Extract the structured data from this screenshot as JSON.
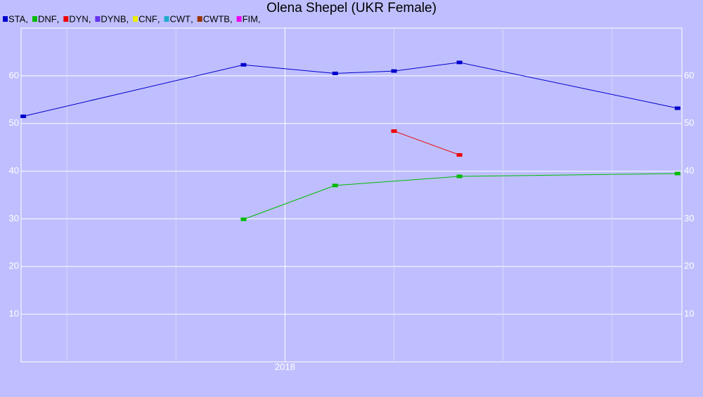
{
  "chart_data": {
    "type": "line",
    "title": "Olena Shepel (UKR Female)",
    "legend_separator": ",",
    "xlim": [
      2016.79,
      2019.82
    ],
    "xticks": [
      {
        "value": 2017,
        "label": null
      },
      {
        "value": 2017.5,
        "label": null
      },
      2018,
      {
        "value": 2018.5,
        "label": null
      },
      {
        "value": 2019,
        "label": null
      },
      {
        "value": 2019.5,
        "label": null
      }
    ],
    "ylim": [
      0,
      70
    ],
    "yticks": [
      10,
      20,
      30,
      40,
      50,
      60
    ],
    "grid": true,
    "series": [
      {
        "name": "STA",
        "color": "#0000cc",
        "x": [
          2016.8,
          2017.81,
          2018.23,
          2018.5,
          2018.8,
          2019.8
        ],
        "values": [
          51.5,
          62.3,
          60.5,
          61.0,
          62.8,
          53.2
        ]
      },
      {
        "name": "DNF",
        "color": "#00bb00",
        "x": [
          2017.81,
          2018.23,
          2018.8,
          2019.8
        ],
        "values": [
          29.9,
          37.0,
          38.9,
          39.5
        ]
      },
      {
        "name": "DYN",
        "color": "#ee0000",
        "x": [
          2018.5,
          2018.8
        ],
        "values": [
          48.4,
          43.4
        ]
      },
      {
        "name": "DYNB",
        "color": "#6633ee",
        "x": [],
        "values": []
      },
      {
        "name": "CNF",
        "color": "#eeee00",
        "x": [],
        "values": []
      },
      {
        "name": "CWT",
        "color": "#22aacc",
        "x": [],
        "values": []
      },
      {
        "name": "CWTB",
        "color": "#993300",
        "x": [],
        "values": []
      },
      {
        "name": "FIM",
        "color": "#ee00ee",
        "x": [],
        "values": []
      }
    ]
  }
}
